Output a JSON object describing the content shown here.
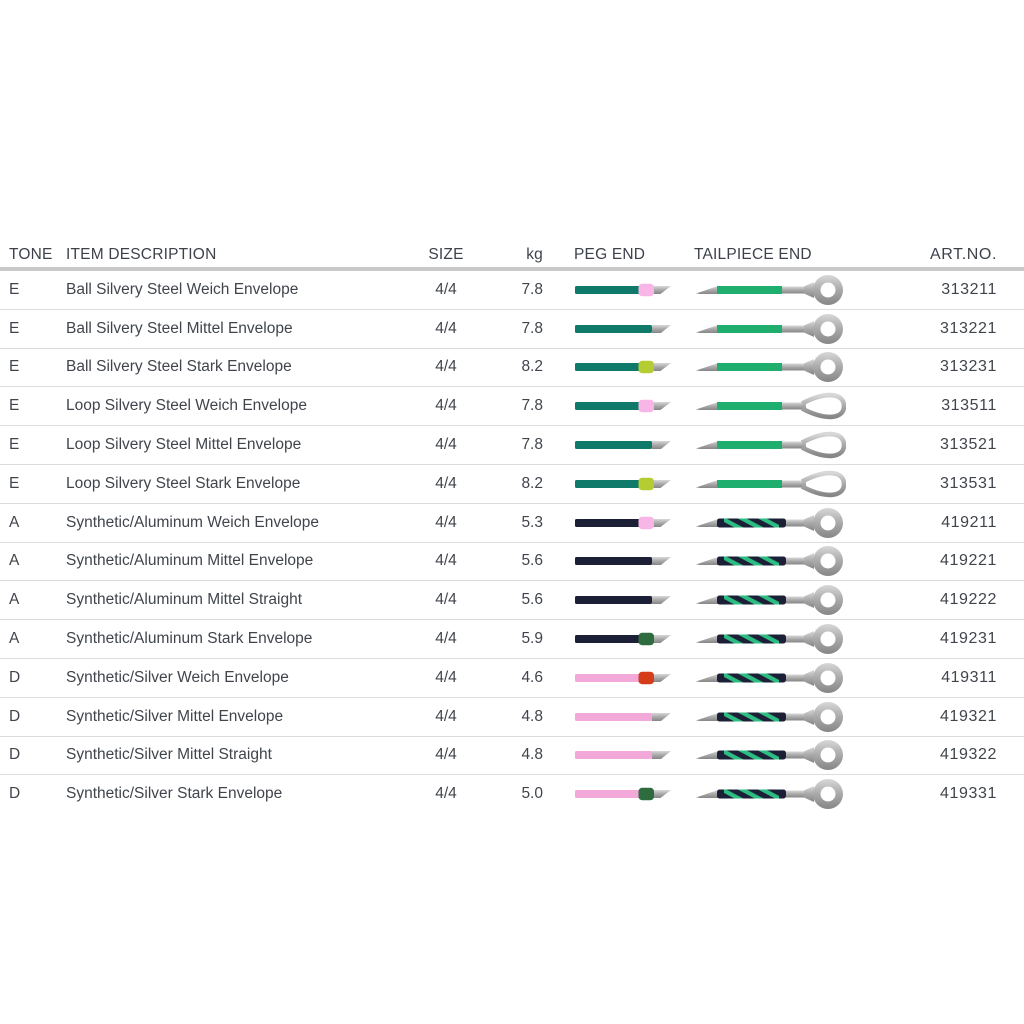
{
  "table": {
    "columns": [
      {
        "key": "tone",
        "label": "TONE"
      },
      {
        "key": "desc",
        "label": "ITEM DESCRIPTION"
      },
      {
        "key": "size",
        "label": "SIZE"
      },
      {
        "key": "kg",
        "label": "kg"
      },
      {
        "key": "peg",
        "label": "PEG END"
      },
      {
        "key": "tail",
        "label": "TAILPIECE END"
      },
      {
        "key": "art",
        "label": "ART.NO."
      }
    ],
    "rows": [
      {
        "tone": "E",
        "desc": "Ball Silvery Steel Weich Envelope",
        "size": "4/4",
        "kg": "7.8",
        "peg": {
          "line": "teal",
          "band": "pink"
        },
        "tail": {
          "body": "green",
          "end": "ball"
        },
        "art": "313211"
      },
      {
        "tone": "E",
        "desc": "Ball Silvery Steel Mittel Envelope",
        "size": "4/4",
        "kg": "7.8",
        "peg": {
          "line": "teal",
          "band": null
        },
        "tail": {
          "body": "green",
          "end": "ball"
        },
        "art": "313221"
      },
      {
        "tone": "E",
        "desc": "Ball Silvery Steel Stark Envelope",
        "size": "4/4",
        "kg": "8.2",
        "peg": {
          "line": "teal",
          "band": "yellowgreen"
        },
        "tail": {
          "body": "green",
          "end": "ball"
        },
        "art": "313231"
      },
      {
        "tone": "E",
        "desc": "Loop Silvery Steel Weich Envelope",
        "size": "4/4",
        "kg": "7.8",
        "peg": {
          "line": "teal",
          "band": "pink"
        },
        "tail": {
          "body": "green",
          "end": "loop"
        },
        "art": "313511"
      },
      {
        "tone": "E",
        "desc": "Loop Silvery Steel Mittel Envelope",
        "size": "4/4",
        "kg": "7.8",
        "peg": {
          "line": "teal",
          "band": null
        },
        "tail": {
          "body": "green",
          "end": "loop"
        },
        "art": "313521"
      },
      {
        "tone": "E",
        "desc": "Loop Silvery Steel Stark Envelope",
        "size": "4/4",
        "kg": "8.2",
        "peg": {
          "line": "teal",
          "band": "yellowgreen"
        },
        "tail": {
          "body": "green",
          "end": "loop"
        },
        "art": "313531"
      },
      {
        "tone": "A",
        "desc": "Synthetic/Aluminum Weich Envelope",
        "size": "4/4",
        "kg": "5.3",
        "peg": {
          "line": "navy",
          "band": "pink"
        },
        "tail": {
          "body": "spiral",
          "end": "ball"
        },
        "art": "419211"
      },
      {
        "tone": "A",
        "desc": "Synthetic/Aluminum Mittel Envelope",
        "size": "4/4",
        "kg": "5.6",
        "peg": {
          "line": "navy",
          "band": null
        },
        "tail": {
          "body": "spiral",
          "end": "ball"
        },
        "art": "419221"
      },
      {
        "tone": "A",
        "desc": "Synthetic/Aluminum Mittel Straight",
        "size": "4/4",
        "kg": "5.6",
        "peg": {
          "line": "navy",
          "band": null
        },
        "tail": {
          "body": "spiral",
          "end": "ball"
        },
        "art": "419222"
      },
      {
        "tone": "A",
        "desc": "Synthetic/Aluminum Stark Envelope",
        "size": "4/4",
        "kg": "5.9",
        "peg": {
          "line": "navy",
          "band": "darkgreen"
        },
        "tail": {
          "body": "spiral",
          "end": "ball"
        },
        "art": "419231"
      },
      {
        "tone": "D",
        "desc": "Synthetic/Silver Weich Envelope",
        "size": "4/4",
        "kg": "4.6",
        "peg": {
          "line": "pink",
          "band": "red"
        },
        "tail": {
          "body": "spiral",
          "end": "ball"
        },
        "art": "419311"
      },
      {
        "tone": "D",
        "desc": "Synthetic/Silver Mittel Envelope",
        "size": "4/4",
        "kg": "4.8",
        "peg": {
          "line": "pink",
          "band": null
        },
        "tail": {
          "body": "spiral",
          "end": "ball"
        },
        "art": "419321"
      },
      {
        "tone": "D",
        "desc": "Synthetic/Silver Mittel Straight",
        "size": "4/4",
        "kg": "4.8",
        "peg": {
          "line": "pink",
          "band": null
        },
        "tail": {
          "body": "spiral",
          "end": "ball"
        },
        "art": "419322"
      },
      {
        "tone": "D",
        "desc": "Synthetic/Silver Stark Envelope",
        "size": "4/4",
        "kg": "5.0",
        "peg": {
          "line": "pink",
          "band": "darkgreen"
        },
        "tail": {
          "body": "spiral",
          "end": "ball"
        },
        "art": "419331"
      }
    ]
  },
  "colors": {
    "peg_lines": {
      "teal": "#0f7a6a",
      "navy": "#1b2036",
      "pink": "#f2a8d8"
    },
    "peg_bands": {
      "pink": "#f8b6e6",
      "yellowgreen": "#b5cc32",
      "darkgreen": "#2e6b3f",
      "red": "#d43d17"
    },
    "tail_green": "#1fae6e",
    "spiral_navy": "#1b2036",
    "spiral_green": "#2dbd82",
    "metal_light": "#d8d8d8",
    "metal_mid": "#a9a9a9",
    "metal_dark": "#868686",
    "header_rule": "#c9c9c9",
    "row_rule": "#dcdcdc",
    "text": "#40454c"
  }
}
